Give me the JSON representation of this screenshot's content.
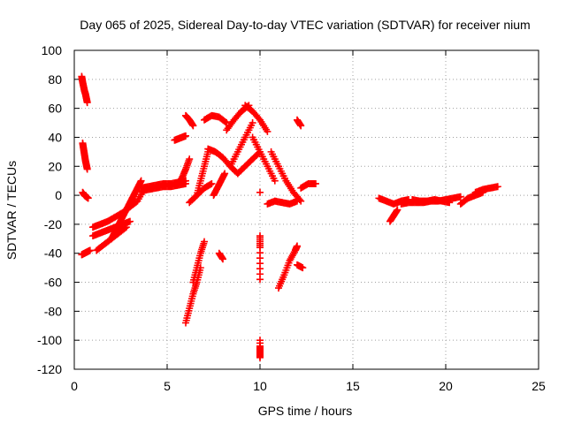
{
  "chart_data": {
    "type": "scatter",
    "title": "Day 065 of 2025, Sidereal Day-to-day VTEC variation (SDTVAR) for receiver nium",
    "xlabel": "GPS time / hours",
    "ylabel": "SDTVAR / TECUs",
    "xlim": [
      0,
      25
    ],
    "ylim": [
      -120,
      100
    ],
    "xticks": [
      "0",
      "5",
      "10",
      "15",
      "20",
      "25"
    ],
    "yticks": [
      "100",
      "80",
      "60",
      "40",
      "20",
      "0",
      "-20",
      "-40",
      "-60",
      "-80",
      "-100",
      "-120"
    ],
    "grid": true,
    "marker": "+",
    "color": "#ff0000",
    "series": [
      {
        "x": [
          0.4,
          0.45,
          0.5,
          0.55,
          0.6,
          0.65,
          0.7
        ],
        "y": [
          82,
          78,
          75,
          72,
          70,
          67,
          64
        ]
      },
      {
        "x": [
          0.45,
          0.5,
          0.55,
          0.6,
          0.65,
          0.7
        ],
        "y": [
          36,
          32,
          28,
          24,
          21,
          18
        ]
      },
      {
        "x": [
          0.45,
          0.55,
          0.65,
          0.75
        ],
        "y": [
          2,
          0,
          -1,
          -2
        ]
      },
      {
        "x": [
          0.4,
          0.55,
          0.7,
          0.85
        ],
        "y": [
          -41,
          -40,
          -39,
          -38
        ]
      },
      {
        "x": [
          1.0,
          1.4,
          1.8,
          2.2,
          2.6,
          3.0,
          3.4,
          3.8
        ],
        "y": [
          -22,
          -20,
          -18,
          -15,
          -12,
          -8,
          -4,
          5
        ]
      },
      {
        "x": [
          1.0,
          1.4,
          1.8,
          2.2,
          2.6,
          3.0
        ],
        "y": [
          -28,
          -26,
          -24,
          -22,
          -20,
          -18
        ]
      },
      {
        "x": [
          1.2,
          1.6,
          2.0,
          2.4,
          2.8
        ],
        "y": [
          -38,
          -34,
          -30,
          -26,
          -22
        ]
      },
      {
        "x": [
          2.0,
          2.2,
          2.4,
          2.6,
          2.8,
          3.0
        ],
        "y": [
          -30,
          -25,
          -20,
          -15,
          -10,
          -5
        ]
      },
      {
        "x": [
          3.0,
          3.2,
          3.4,
          3.6
        ],
        "y": [
          -5,
          0,
          5,
          10
        ]
      },
      {
        "x": [
          3.6,
          4.0,
          4.4,
          4.8,
          5.2,
          5.6,
          6.0
        ],
        "y": [
          5,
          6,
          7,
          8,
          8,
          9,
          10
        ]
      },
      {
        "x": [
          3.6,
          4.0,
          4.4,
          4.8,
          5.2,
          5.6,
          6.0
        ],
        "y": [
          3,
          4,
          5,
          6,
          6,
          7,
          8
        ]
      },
      {
        "x": [
          5.4,
          5.6,
          5.8,
          6.0
        ],
        "y": [
          38,
          39,
          40,
          41
        ]
      },
      {
        "x": [
          5.6,
          5.8,
          6.0,
          6.2
        ],
        "y": [
          8,
          12,
          18,
          25
        ]
      },
      {
        "x": [
          6.0,
          6.2,
          6.4
        ],
        "y": [
          55,
          52,
          48
        ]
      },
      {
        "x": [
          6.0,
          6.2,
          6.4,
          6.6,
          6.8
        ],
        "y": [
          -88,
          -78,
          -68,
          -60,
          -50
        ]
      },
      {
        "x": [
          6.4,
          6.6,
          6.8,
          7.0
        ],
        "y": [
          -60,
          -50,
          -40,
          -32
        ]
      },
      {
        "x": [
          6.2,
          6.6,
          7.0,
          7.4
        ],
        "y": [
          -5,
          0,
          5,
          8
        ]
      },
      {
        "x": [
          6.6,
          6.8,
          7.0,
          7.2
        ],
        "y": [
          0,
          10,
          20,
          30
        ]
      },
      {
        "x": [
          7.0,
          7.4,
          7.8,
          8.2
        ],
        "y": [
          52,
          55,
          54,
          50
        ]
      },
      {
        "x": [
          7.2,
          7.6,
          8.0,
          8.4,
          8.8
        ],
        "y": [
          32,
          30,
          26,
          20,
          15
        ]
      },
      {
        "x": [
          7.5,
          7.7,
          7.9,
          8.1
        ],
        "y": [
          0,
          5,
          10,
          15
        ]
      },
      {
        "x": [
          7.8,
          8.0
        ],
        "y": [
          -40,
          -44
        ]
      },
      {
        "x": [
          8.2,
          8.6,
          9.0,
          9.4
        ],
        "y": [
          45,
          52,
          58,
          62
        ]
      },
      {
        "x": [
          8.4,
          8.8,
          9.2,
          9.6
        ],
        "y": [
          20,
          30,
          40,
          50
        ]
      },
      {
        "x": [
          8.8,
          9.2,
          9.6,
          10.0
        ],
        "y": [
          15,
          20,
          25,
          30
        ]
      },
      {
        "x": [
          9.2,
          9.6,
          10.0,
          10.4
        ],
        "y": [
          62,
          58,
          52,
          44
        ]
      },
      {
        "x": [
          9.6,
          10.0,
          10.4,
          10.8
        ],
        "y": [
          40,
          30,
          20,
          10
        ]
      },
      {
        "x": [
          10.0,
          10.0,
          10.0
        ],
        "y": [
          -28,
          -36,
          -58
        ]
      },
      {
        "x": [
          10.0,
          10.0,
          10.0,
          10.0
        ],
        "y": [
          -104,
          -108,
          -112,
          -100
        ]
      },
      {
        "x": [
          10.0
        ],
        "y": [
          2
        ]
      },
      {
        "x": [
          10.4,
          10.8,
          11.2,
          11.6,
          12.0
        ],
        "y": [
          -6,
          -4,
          -5,
          -6,
          -4
        ]
      },
      {
        "x": [
          10.6,
          11.0,
          11.4,
          11.8,
          12.2
        ],
        "y": [
          30,
          20,
          10,
          2,
          -4
        ]
      },
      {
        "x": [
          11.0,
          11.3,
          11.6,
          11.9,
          12.0
        ],
        "y": [
          -64,
          -55,
          -45,
          -38,
          -35
        ]
      },
      {
        "x": [
          12.0,
          12.2
        ],
        "y": [
          52,
          48
        ]
      },
      {
        "x": [
          12.0,
          12.3
        ],
        "y": [
          -48,
          -50
        ]
      },
      {
        "x": [
          12.2,
          12.6,
          13.0
        ],
        "y": [
          5,
          8,
          8
        ]
      },
      {
        "x": [
          16.4,
          16.8,
          17.2,
          17.6,
          18.0
        ],
        "y": [
          -2,
          -4,
          -6,
          -4,
          -3
        ]
      },
      {
        "x": [
          17.0,
          17.2,
          17.4
        ],
        "y": [
          -18,
          -14,
          -10
        ]
      },
      {
        "x": [
          17.6,
          18.0,
          18.4,
          18.8,
          19.2,
          19.6,
          20.0,
          20.4,
          20.8
        ],
        "y": [
          -6,
          -5,
          -5,
          -5,
          -4,
          -4,
          -3,
          -2,
          -1
        ]
      },
      {
        "x": [
          18.2,
          18.6,
          19.0,
          19.4,
          19.8,
          20.2
        ],
        "y": [
          -3,
          -4,
          -4,
          -3,
          -4,
          -5
        ]
      },
      {
        "x": [
          20.8,
          21.2,
          21.6,
          22.0
        ],
        "y": [
          -6,
          -2,
          0,
          2
        ]
      },
      {
        "x": [
          21.6,
          22.0,
          22.4,
          22.8
        ],
        "y": [
          2,
          4,
          5,
          6
        ]
      }
    ]
  }
}
